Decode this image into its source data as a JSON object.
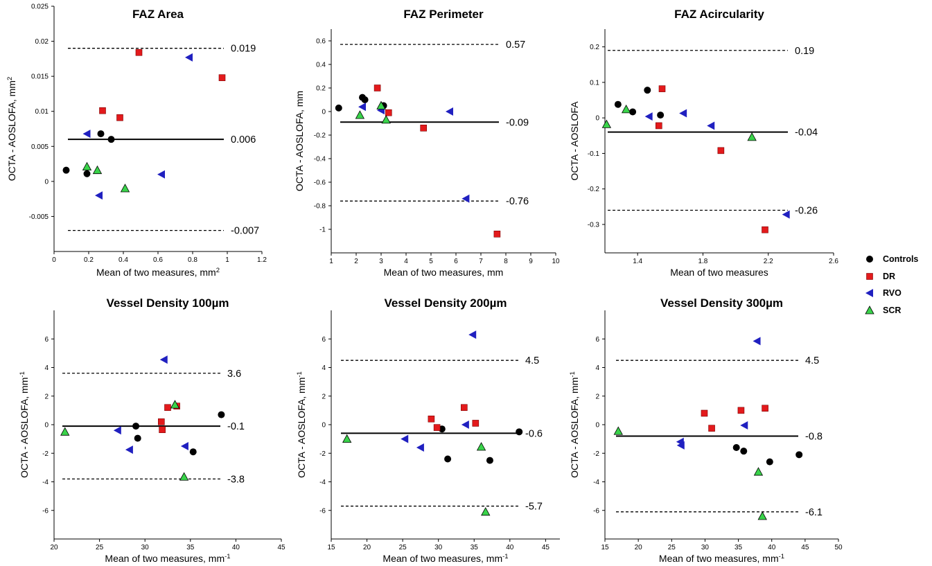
{
  "legend": {
    "entries": [
      {
        "label": "Controls",
        "color": "#000000",
        "marker": "circle"
      },
      {
        "label": "DR",
        "color": "#e31a1c",
        "marker": "square"
      },
      {
        "label": "RVO",
        "color": "#2020c0",
        "marker": "triangle-left"
      },
      {
        "label": "SCR",
        "color": "#39d34a",
        "marker": "triangle-up"
      }
    ]
  },
  "chart_data": [
    {
      "type": "scatter",
      "title": "FAZ Area",
      "xlabel": "Mean of two measures, mm",
      "xlabel_sup": "2",
      "ylabel": "OCTA - AOSLOFA, mm",
      "ylabel_sup": "2",
      "xlim": [
        0,
        1.2
      ],
      "ylim": [
        -0.01,
        0.025
      ],
      "xticks": [
        0,
        0.2,
        0.4,
        0.6,
        0.8,
        1,
        1.2
      ],
      "yticks": [
        -0.005,
        0,
        0.005,
        0.01,
        0.015,
        0.02,
        0.025
      ],
      "bias": 0.006,
      "bias_label": "0.006",
      "upper_loa": 0.019,
      "upper_label": "0.019",
      "lower_loa": -0.007,
      "lower_label": "-0.007",
      "series": [
        {
          "name": "Controls",
          "points": [
            [
              0.07,
              0.0016
            ],
            [
              0.19,
              0.0011
            ],
            [
              0.27,
              0.0068
            ],
            [
              0.33,
              0.006
            ]
          ]
        },
        {
          "name": "DR",
          "points": [
            [
              0.28,
              0.0101
            ],
            [
              0.38,
              0.0091
            ],
            [
              0.49,
              0.0184
            ],
            [
              0.97,
              0.0148
            ]
          ]
        },
        {
          "name": "RVO",
          "points": [
            [
              0.19,
              0.0068
            ],
            [
              0.26,
              -0.002
            ],
            [
              0.62,
              0.001
            ],
            [
              0.78,
              0.0177
            ]
          ]
        },
        {
          "name": "SCR",
          "points": [
            [
              0.19,
              0.0021
            ],
            [
              0.25,
              0.0016
            ],
            [
              0.41,
              -0.001
            ]
          ]
        }
      ]
    },
    {
      "type": "scatter",
      "title": "FAZ Perimeter",
      "xlabel": "Mean of two measures, mm",
      "xlabel_sup": "",
      "ylabel": "OCTA - AOSLOFA, mm",
      "ylabel_sup": "",
      "xlim": [
        1,
        10
      ],
      "ylim": [
        -1.2,
        0.7
      ],
      "xticks": [
        1,
        2,
        3,
        4,
        5,
        6,
        7,
        8,
        9,
        10
      ],
      "yticks": [
        -1,
        -0.8,
        -0.6,
        -0.4,
        -0.2,
        0,
        0.2,
        0.4,
        0.6
      ],
      "bias": -0.09,
      "bias_label": "-0.09",
      "upper_loa": 0.57,
      "upper_label": "0.57",
      "lower_loa": -0.76,
      "lower_label": "-0.76",
      "series": [
        {
          "name": "Controls",
          "points": [
            [
              1.3,
              0.03
            ],
            [
              2.25,
              0.12
            ],
            [
              2.35,
              0.1
            ],
            [
              3.1,
              0.05
            ]
          ]
        },
        {
          "name": "DR",
          "points": [
            [
              2.85,
              0.2
            ],
            [
              3.3,
              -0.01
            ],
            [
              4.7,
              -0.14
            ],
            [
              7.65,
              -1.04
            ]
          ]
        },
        {
          "name": "RVO",
          "points": [
            [
              2.25,
              0.04
            ],
            [
              3.0,
              0.01
            ],
            [
              5.75,
              0.0
            ],
            [
              6.4,
              -0.74
            ]
          ]
        },
        {
          "name": "SCR",
          "points": [
            [
              2.15,
              -0.03
            ],
            [
              3.0,
              0.05
            ],
            [
              3.2,
              -0.07
            ]
          ]
        }
      ]
    },
    {
      "type": "scatter",
      "title": "FAZ Acircularity",
      "xlabel": "Mean of two measures",
      "xlabel_sup": "",
      "ylabel": "OCTA - AOSLOFA",
      "ylabel_sup": "",
      "xlim": [
        1.2,
        2.6
      ],
      "ylim": [
        -0.38,
        0.25
      ],
      "xticks": [
        1.4,
        1.8,
        2.2,
        2.6
      ],
      "yticks": [
        -0.3,
        -0.2,
        -0.1,
        0,
        0.1,
        0.2
      ],
      "bias": -0.04,
      "bias_label": "-0.04",
      "upper_loa": 0.19,
      "upper_label": "0.19",
      "lower_loa": -0.26,
      "lower_label": "-0.26",
      "series": [
        {
          "name": "Controls",
          "points": [
            [
              1.28,
              0.038
            ],
            [
              1.37,
              0.017
            ],
            [
              1.46,
              0.078
            ],
            [
              1.54,
              0.008
            ]
          ]
        },
        {
          "name": "DR",
          "points": [
            [
              1.53,
              -0.022
            ],
            [
              1.55,
              0.082
            ],
            [
              1.91,
              -0.092
            ],
            [
              2.18,
              -0.315
            ]
          ]
        },
        {
          "name": "RVO",
          "points": [
            [
              1.47,
              0.004
            ],
            [
              1.68,
              0.013
            ],
            [
              1.85,
              -0.022
            ],
            [
              2.31,
              -0.272
            ]
          ]
        },
        {
          "name": "SCR",
          "points": [
            [
              1.21,
              -0.018
            ],
            [
              1.33,
              0.024
            ],
            [
              2.1,
              -0.054
            ]
          ]
        }
      ]
    },
    {
      "type": "scatter",
      "title": "Vessel Density 100µm",
      "xlabel": "Mean of two measures, mm",
      "xlabel_sup": "-1",
      "ylabel": "OCTA - AOSLOFA, mm",
      "ylabel_sup": "-1",
      "xlim": [
        20,
        45
      ],
      "ylim": [
        -8,
        8
      ],
      "xticks": [
        20,
        25,
        30,
        35,
        40,
        45
      ],
      "yticks": [
        -6,
        -4,
        -2,
        0,
        2,
        4,
        6
      ],
      "bias": -0.1,
      "bias_label": "-0.1",
      "upper_loa": 3.6,
      "upper_label": "3.6",
      "lower_loa": -3.8,
      "lower_label": "-3.8",
      "series": [
        {
          "name": "Controls",
          "points": [
            [
              29.0,
              -0.1
            ],
            [
              29.2,
              -0.95
            ],
            [
              35.3,
              -1.9
            ],
            [
              38.4,
              0.7
            ]
          ]
        },
        {
          "name": "DR",
          "points": [
            [
              31.8,
              0.2
            ],
            [
              31.9,
              -0.35
            ],
            [
              32.5,
              1.2
            ],
            [
              33.5,
              1.3
            ]
          ]
        },
        {
          "name": "RVO",
          "points": [
            [
              27.0,
              -0.4
            ],
            [
              28.3,
              -1.75
            ],
            [
              32.1,
              4.55
            ],
            [
              34.4,
              -1.5
            ]
          ]
        },
        {
          "name": "SCR",
          "points": [
            [
              21.2,
              -0.5
            ],
            [
              33.3,
              1.4
            ],
            [
              34.3,
              -3.65
            ]
          ]
        }
      ]
    },
    {
      "type": "scatter",
      "title": "Vessel Density 200µm",
      "xlabel": "Mean of two measures, mm",
      "xlabel_sup": "-1",
      "ylabel": "OCTA - AOSLOFA, mm",
      "ylabel_sup": "-1",
      "xlim": [
        15,
        47
      ],
      "ylim": [
        -8,
        8
      ],
      "xticks": [
        15,
        20,
        25,
        30,
        35,
        40,
        45
      ],
      "yticks": [
        -6,
        -4,
        -2,
        0,
        2,
        4,
        6
      ],
      "bias": -0.6,
      "bias_label": "-0.6",
      "upper_loa": 4.5,
      "upper_label": "4.5",
      "lower_loa": -5.7,
      "lower_label": "-5.7",
      "series": [
        {
          "name": "Controls",
          "points": [
            [
              30.5,
              -0.3
            ],
            [
              31.3,
              -2.4
            ],
            [
              37.2,
              -2.5
            ],
            [
              41.3,
              -0.5
            ]
          ]
        },
        {
          "name": "DR",
          "points": [
            [
              29.0,
              0.4
            ],
            [
              29.8,
              -0.2
            ],
            [
              33.6,
              1.2
            ],
            [
              35.2,
              0.1
            ]
          ]
        },
        {
          "name": "RVO",
          "points": [
            [
              25.3,
              -1.0
            ],
            [
              27.5,
              -1.6
            ],
            [
              33.8,
              0.0
            ],
            [
              34.8,
              6.3
            ]
          ]
        },
        {
          "name": "SCR",
          "points": [
            [
              17.2,
              -1.0
            ],
            [
              36.0,
              -1.55
            ],
            [
              36.6,
              -6.1
            ]
          ]
        }
      ]
    },
    {
      "type": "scatter",
      "title": "Vessel Density 300µm",
      "xlabel": "Mean of two measures, mm",
      "xlabel_sup": "-1",
      "ylabel": "OCTA - AOSLOFA, mm",
      "ylabel_sup": "-1",
      "xlim": [
        15,
        50
      ],
      "ylim": [
        -8,
        8
      ],
      "xticks": [
        15,
        20,
        25,
        30,
        35,
        40,
        45,
        50
      ],
      "yticks": [
        -6,
        -4,
        -2,
        0,
        2,
        4,
        6
      ],
      "bias": -0.8,
      "bias_label": "-0.8",
      "upper_loa": 4.5,
      "upper_label": "4.5",
      "lower_loa": -6.1,
      "lower_label": "-6.1",
      "series": [
        {
          "name": "Controls",
          "points": [
            [
              34.7,
              -1.6
            ],
            [
              35.8,
              -1.85
            ],
            [
              39.7,
              -2.6
            ],
            [
              44.1,
              -2.1
            ]
          ]
        },
        {
          "name": "DR",
          "points": [
            [
              29.9,
              0.8
            ],
            [
              31.0,
              -0.25
            ],
            [
              35.4,
              1.0
            ],
            [
              39.0,
              1.15
            ]
          ]
        },
        {
          "name": "RVO",
          "points": [
            [
              26.3,
              -1.2
            ],
            [
              26.4,
              -1.45
            ],
            [
              35.9,
              -0.05
            ],
            [
              37.8,
              5.85
            ]
          ]
        },
        {
          "name": "SCR",
          "points": [
            [
              17.0,
              -0.45
            ],
            [
              38.0,
              -3.3
            ],
            [
              38.6,
              -6.4
            ]
          ]
        }
      ]
    }
  ]
}
